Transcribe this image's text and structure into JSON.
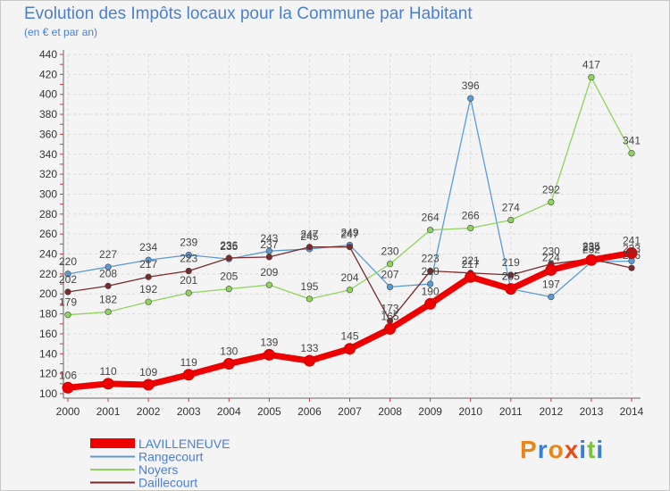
{
  "chart_data": {
    "type": "line",
    "title": "Evolution des Impôts locaux pour la Commune par Habitant",
    "subtitle": "(en € et par an)",
    "xlabel": "",
    "ylabel": "",
    "x": [
      "2000",
      "2001",
      "2002",
      "2003",
      "2004",
      "2005",
      "2006",
      "2007",
      "2008",
      "2009",
      "2010",
      "2011",
      "2012",
      "2013",
      "2014"
    ],
    "ylim": [
      100,
      440
    ],
    "ystep": 20,
    "y_ticks": [
      "100",
      "120",
      "140",
      "160",
      "180",
      "200",
      "220",
      "240",
      "260",
      "280",
      "300",
      "320",
      "340",
      "360",
      "380",
      "400",
      "420",
      "440"
    ],
    "grid": true,
    "legend_position": "bottom-left",
    "series": [
      {
        "name": "LAVILLENEUVE",
        "color": "#ee0000",
        "values": [
          106,
          110,
          109,
          119,
          130,
          139,
          133,
          145,
          165,
          190,
          217,
          205,
          224,
          234,
          241
        ]
      },
      {
        "name": "Rangecourt",
        "color": "#5b9bd5",
        "values": [
          220,
          227,
          234,
          239,
          235,
          243,
          245,
          249,
          207,
          210,
          396,
          205,
          197,
          232,
          233
        ]
      },
      {
        "name": "Noyers",
        "color": "#8fd45a",
        "values": [
          179,
          182,
          192,
          201,
          205,
          209,
          195,
          204,
          230,
          264,
          266,
          274,
          292,
          417,
          341
        ]
      },
      {
        "name": "Daillecourt",
        "color": "#7a2a2a",
        "values": [
          202,
          208,
          217,
          223,
          236,
          237,
          247,
          247,
          173,
          223,
          221,
          219,
          230,
          235,
          226
        ]
      }
    ]
  },
  "branding": {
    "logo_text": "Proxiti",
    "logo_colors": [
      "#e8861a",
      "#3a7fd0",
      "#e8861a",
      "#e84a1a",
      "#3a7fd0",
      "#7ac142",
      "#3a7fd0"
    ]
  }
}
